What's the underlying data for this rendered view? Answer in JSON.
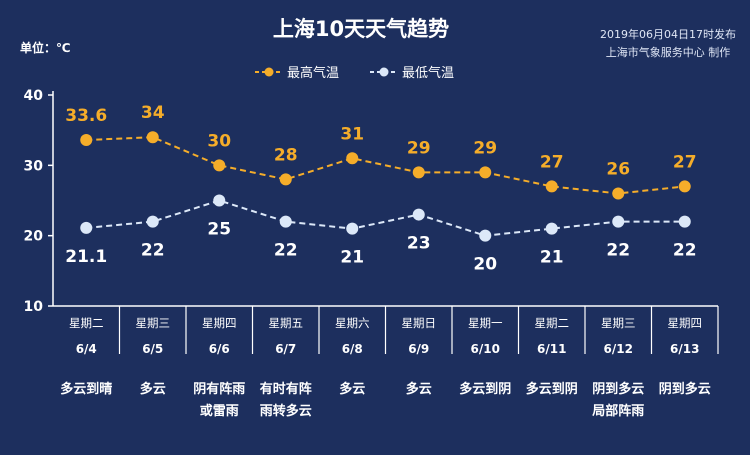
{
  "header": {
    "unit_label": "单位：℃",
    "publish_time": "2019年06月04日17时发布",
    "publisher": "上海市气象服务中心 制作"
  },
  "colors": {
    "background": "#1d2f5e",
    "high": "#f5ad2a",
    "low": "#dce8f8",
    "axis": "#ffffff"
  },
  "chart_data": {
    "type": "line",
    "title": "上海10天天气趋势",
    "legend_placement": "top-center",
    "ylim": [
      10,
      40
    ],
    "yticks": [
      10,
      20,
      30,
      40
    ],
    "grid": false,
    "categories": [
      {
        "weekday": "星期二",
        "date": "6/4",
        "weather": [
          "多云到晴"
        ]
      },
      {
        "weekday": "星期三",
        "date": "6/5",
        "weather": [
          "多云"
        ]
      },
      {
        "weekday": "星期四",
        "date": "6/6",
        "weather": [
          "阴有阵雨",
          "或雷雨"
        ]
      },
      {
        "weekday": "星期五",
        "date": "6/7",
        "weather": [
          "有时有阵",
          "雨转多云"
        ]
      },
      {
        "weekday": "星期六",
        "date": "6/8",
        "weather": [
          "多云"
        ]
      },
      {
        "weekday": "星期日",
        "date": "6/9",
        "weather": [
          "多云"
        ]
      },
      {
        "weekday": "星期一",
        "date": "6/10",
        "weather": [
          "多云到阴"
        ]
      },
      {
        "weekday": "星期二",
        "date": "6/11",
        "weather": [
          "多云到阴"
        ]
      },
      {
        "weekday": "星期三",
        "date": "6/12",
        "weather": [
          "阴到多云",
          "局部阵雨"
        ]
      },
      {
        "weekday": "星期四",
        "date": "6/13",
        "weather": [
          "阴到多云"
        ]
      }
    ],
    "series": [
      {
        "name": "最高气温",
        "values": [
          33.6,
          34,
          30,
          28,
          31,
          29,
          29,
          27,
          26,
          27
        ],
        "labels": [
          "33.6",
          "34",
          "30",
          "28",
          "31",
          "29",
          "29",
          "27",
          "26",
          "27"
        ]
      },
      {
        "name": "最低气温",
        "values": [
          21.1,
          22,
          25,
          22,
          21,
          23,
          20,
          21,
          22,
          22
        ],
        "labels": [
          "21.1",
          "22",
          "25",
          "22",
          "21",
          "23",
          "20",
          "21",
          "22",
          "22"
        ]
      }
    ]
  }
}
